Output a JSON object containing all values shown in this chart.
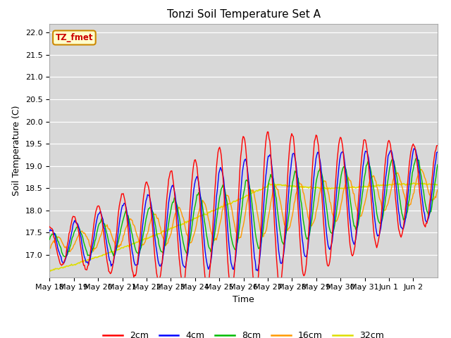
{
  "title": "Tonzi Soil Temperature Set A",
  "xlabel": "Time",
  "ylabel": "Soil Temperature (C)",
  "ylim": [
    16.5,
    22.2
  ],
  "annotation_text": "TZ_fmet",
  "annotation_bg": "#ffffcc",
  "annotation_border": "#cc8800",
  "series_colors": {
    "2cm": "#ff0000",
    "4cm": "#0000ff",
    "8cm": "#00bb00",
    "16cm": "#ff9900",
    "32cm": "#dddd00"
  },
  "x_tick_labels": [
    "May 18",
    "May 19",
    "May 20",
    "May 21",
    "May 22",
    "May 23",
    "May 24",
    "May 25",
    "May 26",
    "May 27",
    "May 28",
    "May 29",
    "May 30",
    "May 31",
    "Jun 1",
    "Jun 2"
  ],
  "n_points": 480
}
